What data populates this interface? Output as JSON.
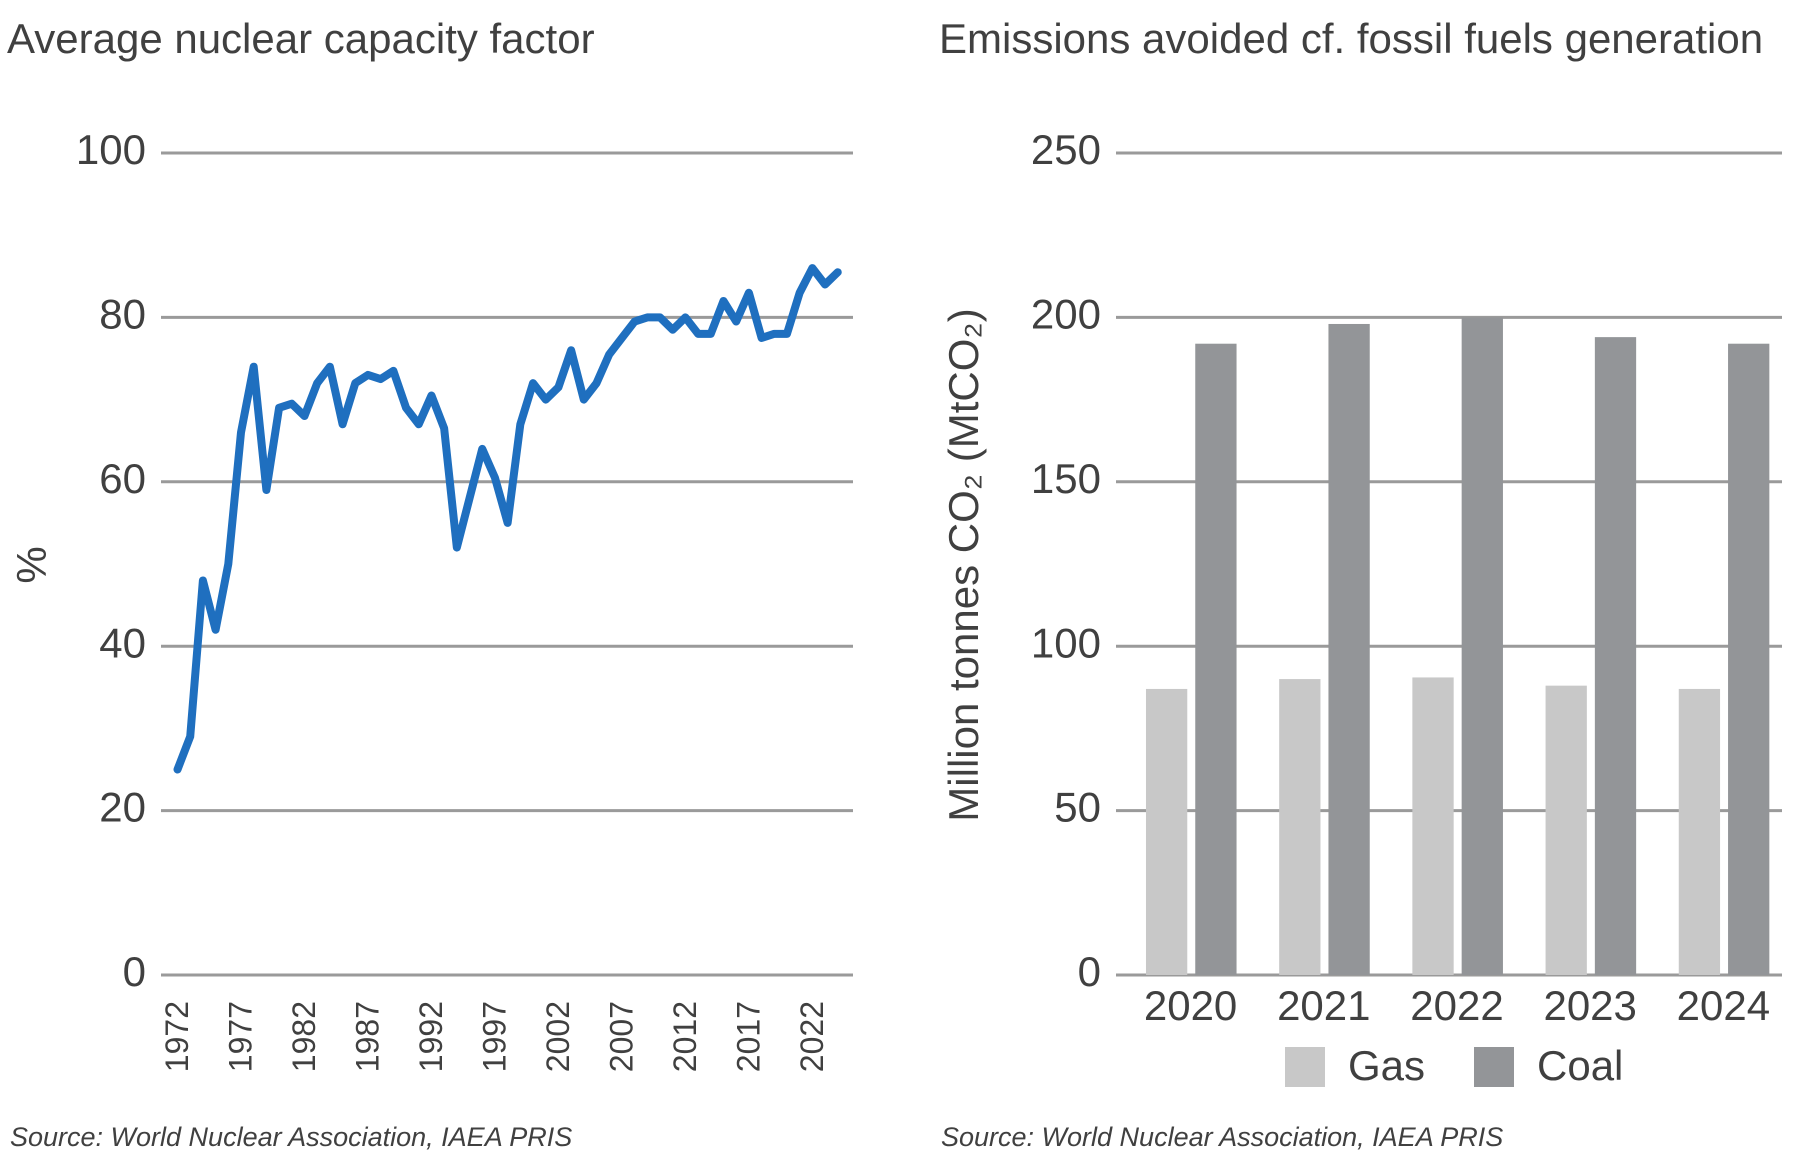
{
  "chart_data": [
    {
      "type": "line",
      "title": "Average nuclear capacity factor",
      "y_label": "%",
      "x": [
        1972,
        1973,
        1974,
        1975,
        1976,
        1977,
        1978,
        1979,
        1980,
        1981,
        1982,
        1983,
        1984,
        1985,
        1986,
        1987,
        1988,
        1989,
        1990,
        1991,
        1992,
        1993,
        1994,
        1995,
        1996,
        1997,
        1998,
        1999,
        2000,
        2001,
        2002,
        2003,
        2004,
        2005,
        2006,
        2007,
        2008,
        2009,
        2010,
        2011,
        2012,
        2013,
        2014,
        2015,
        2016,
        2017,
        2018,
        2019,
        2020,
        2021,
        2022,
        2023,
        2024
      ],
      "values": [
        25,
        29,
        48,
        42,
        50,
        66,
        74,
        59,
        69,
        69.5,
        68,
        72,
        74,
        67,
        72,
        73,
        72.5,
        73.5,
        69,
        67,
        70.5,
        66.5,
        52,
        58,
        64,
        60.5,
        55,
        67,
        72,
        70,
        71.5,
        76,
        70,
        72,
        75.5,
        77.5,
        79.5,
        80,
        80,
        78.5,
        80,
        78,
        78,
        82,
        79.5,
        83,
        77.5,
        78,
        78,
        83,
        86,
        84,
        85.5
      ],
      "color": "#1f6fbf",
      "xlim": [
        1970.7,
        2025.2
      ],
      "xticks": [
        1972,
        1977,
        1982,
        1987,
        1992,
        1997,
        2002,
        2007,
        2012,
        2017,
        2022
      ],
      "ylim": [
        0,
        100
      ],
      "yticks": [
        0,
        20,
        40,
        60,
        80,
        100
      ],
      "grid": true,
      "source": "Source: World Nuclear Association, IAEA PRIS"
    },
    {
      "type": "bar",
      "title": "Emissions avoided cf. fossil fuels generation",
      "y_label": "Million tonnes CO₂ (MtCO₂)",
      "categories": [
        "2020",
        "2021",
        "2022",
        "2023",
        "2024"
      ],
      "series": [
        {
          "name": "Gas",
          "color": "#c8c8c8",
          "values": [
            87,
            90,
            90.5,
            88,
            87
          ]
        },
        {
          "name": "Coal",
          "color": "#939598",
          "values": [
            192,
            198,
            200,
            194,
            192
          ]
        }
      ],
      "ylim": [
        0,
        250
      ],
      "yticks": [
        0,
        50,
        100,
        150,
        200,
        250
      ],
      "grid": true,
      "legend": "bottom",
      "source": "Source: World Nuclear Association, IAEA PRIS"
    }
  ]
}
